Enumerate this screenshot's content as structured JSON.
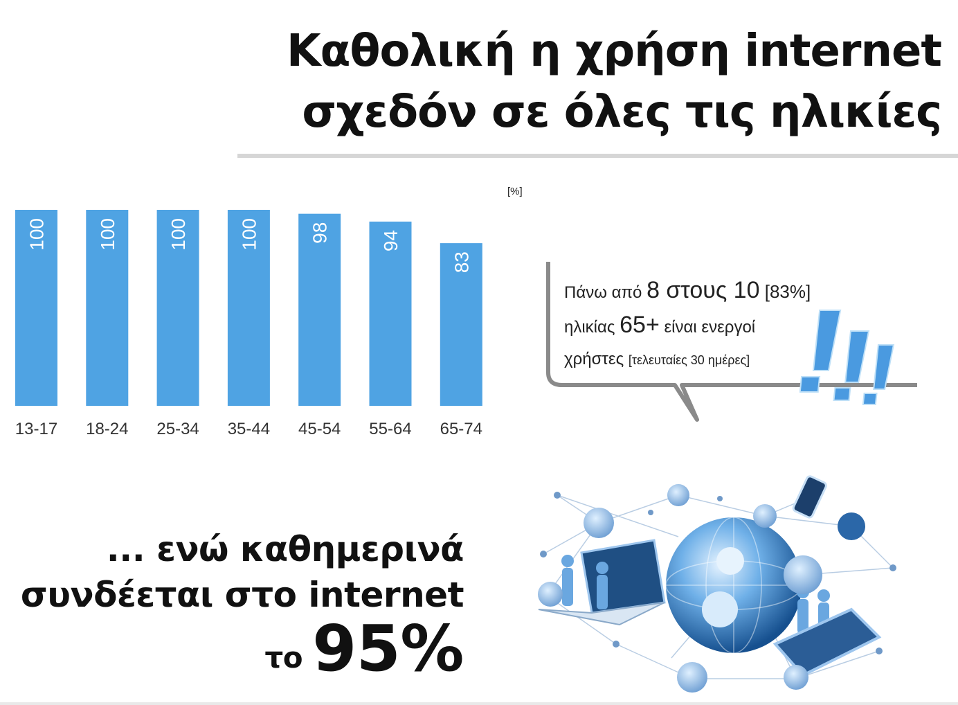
{
  "title": {
    "line1": "Καθολική η χρήση internet",
    "line2": "σχεδόν σε όλες τις ηλικίες"
  },
  "chart_data": {
    "type": "bar",
    "unit_label": "[%]",
    "categories": [
      "13-17",
      "18-24",
      "25-34",
      "35-44",
      "45-54",
      "55-64",
      "65-74"
    ],
    "values": [
      100,
      100,
      100,
      100,
      98,
      94,
      83
    ],
    "ylim": [
      0,
      100
    ],
    "bar_color": "#4fa3e3",
    "data_labels": "rotated inside top of bar",
    "grid": false
  },
  "callout": {
    "part1": "Πάνω από ",
    "part2": "8 στους 10",
    "part3": " [83%]",
    "part4": "ηλικίας ",
    "part5": "65+",
    "part6": " είναι ενεργοί",
    "part7": "χρήστες ",
    "part8": "[τελευταίες 30 ημέρες]"
  },
  "bottom": {
    "line1": "... ενώ καθημερινά",
    "line2": "συνδέεται στο internet",
    "prefix": "το ",
    "percent": "95%"
  },
  "colors": {
    "bar": "#4fa3e3",
    "exclamation": "#4a9ae0",
    "globe": "#2c6fb0",
    "rule": "#d6d6d6"
  },
  "icons": [
    "exclamation-marks-icon",
    "globe-network-icon",
    "laptop-icon",
    "tablet-icon",
    "phone-icon",
    "cloud-icon",
    "lock-icon",
    "user-icon"
  ]
}
